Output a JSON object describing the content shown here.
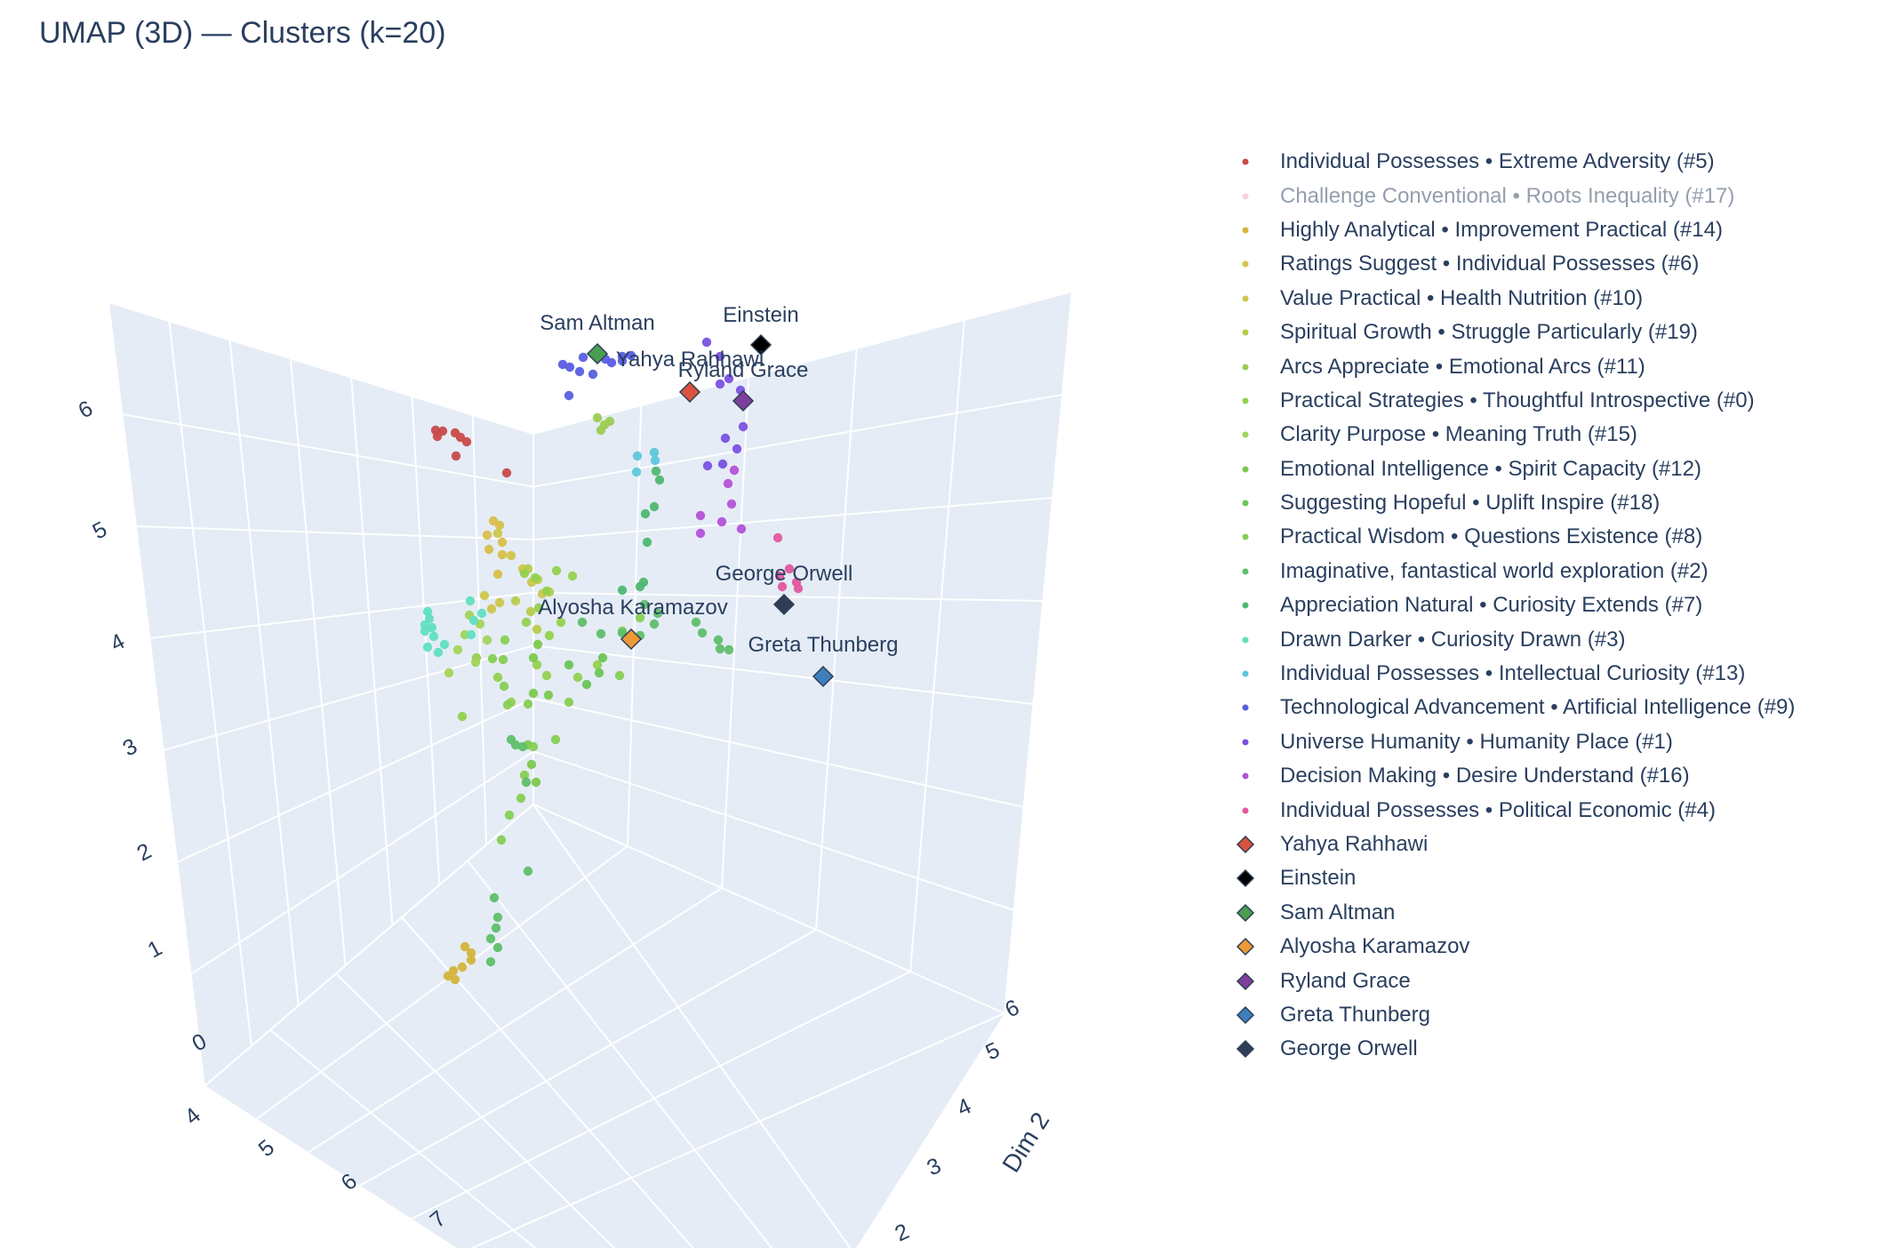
{
  "chart_title": "UMAP (3D) — Clusters (k=20)",
  "chart_data": {
    "type": "scatter",
    "title": "UMAP (3D) — Clusters (k=20)",
    "projection": "3d",
    "axes": {
      "x": {
        "title": "",
        "ticks": [
          4,
          5,
          6,
          7
        ],
        "range": [
          4,
          8
        ]
      },
      "y": {
        "title": "Dim 2",
        "ticks": [
          2,
          3,
          4,
          5,
          6
        ],
        "range": [
          1.5,
          6.5
        ]
      },
      "z": {
        "title": "",
        "ticks": [
          0,
          1,
          2,
          3,
          4,
          5,
          6
        ],
        "range": [
          -0.3,
          6.3
        ]
      }
    },
    "grid": true,
    "legend_position": "right",
    "clusters": [
      {
        "name": "Individual Possesses • Extreme Adversity (#5)",
        "color": "#c94a4a",
        "visible": true
      },
      {
        "name": "Challenge Conventional • Roots Inequality (#17)",
        "color": "#f3a6b8",
        "visible": false
      },
      {
        "name": "Highly Analytical • Improvement Practical (#14)",
        "color": "#d4b43a",
        "visible": true
      },
      {
        "name": "Ratings Suggest • Individual Possesses (#6)",
        "color": "#d8bf4a",
        "visible": true
      },
      {
        "name": "Value Practical • Health Nutrition (#10)",
        "color": "#cdc64c",
        "visible": true
      },
      {
        "name": "Spiritual Growth • Struggle Particularly (#19)",
        "color": "#b7cc4a",
        "visible": true
      },
      {
        "name": "Arcs Appreciate • Emotional Arcs (#11)",
        "color": "#9ccc52",
        "visible": true
      },
      {
        "name": "Practical Strategies • Thoughtful Introspective (#0)",
        "color": "#94d14e",
        "visible": true
      },
      {
        "name": "Clarity Purpose • Meaning Truth (#15)",
        "color": "#a3d45a",
        "visible": true
      },
      {
        "name": "Emotional Intelligence • Spirit Capacity (#12)",
        "color": "#7cc94f",
        "visible": true
      },
      {
        "name": "Suggesting Hopeful • Uplift Inspire (#18)",
        "color": "#6cc457",
        "visible": true
      },
      {
        "name": "Practical Wisdom • Questions Existence (#8)",
        "color": "#86cf54",
        "visible": true
      },
      {
        "name": "Imaginative, fantastical world exploration (#2)",
        "color": "#5fbf6a",
        "visible": true
      },
      {
        "name": "Appreciation Natural • Curiosity Extends (#7)",
        "color": "#4fb871",
        "visible": true
      },
      {
        "name": "Drawn Darker • Curiosity Drawn (#3)",
        "color": "#61e0c0",
        "visible": true
      },
      {
        "name": "Individual Possesses • Intellectual Curiosity (#13)",
        "color": "#5cc8dc",
        "visible": true
      },
      {
        "name": "Technological Advancement • Artificial Intelligence (#9)",
        "color": "#5a5ee0",
        "visible": true
      },
      {
        "name": "Universe Humanity • Humanity Place (#1)",
        "color": "#7a52e0",
        "visible": true
      },
      {
        "name": "Decision Making • Desire Understand (#16)",
        "color": "#b452d8",
        "visible": true
      },
      {
        "name": "Individual Possesses • Political Economic (#4)",
        "color": "#e2589e",
        "visible": true
      }
    ],
    "markers": [
      {
        "name": "Yahya Rahhawi",
        "color": "#d9533f"
      },
      {
        "name": "Einstein",
        "color": "#000000"
      },
      {
        "name": "Sam Altman",
        "color": "#4a9e4f"
      },
      {
        "name": "Alyosha Karamazov",
        "color": "#ef9836"
      },
      {
        "name": "Ryland Grace",
        "color": "#7d3f9e"
      },
      {
        "name": "Greta Thunberg",
        "color": "#3d7fbd"
      },
      {
        "name": "George Orwell",
        "color": "#2f3e55"
      }
    ]
  }
}
